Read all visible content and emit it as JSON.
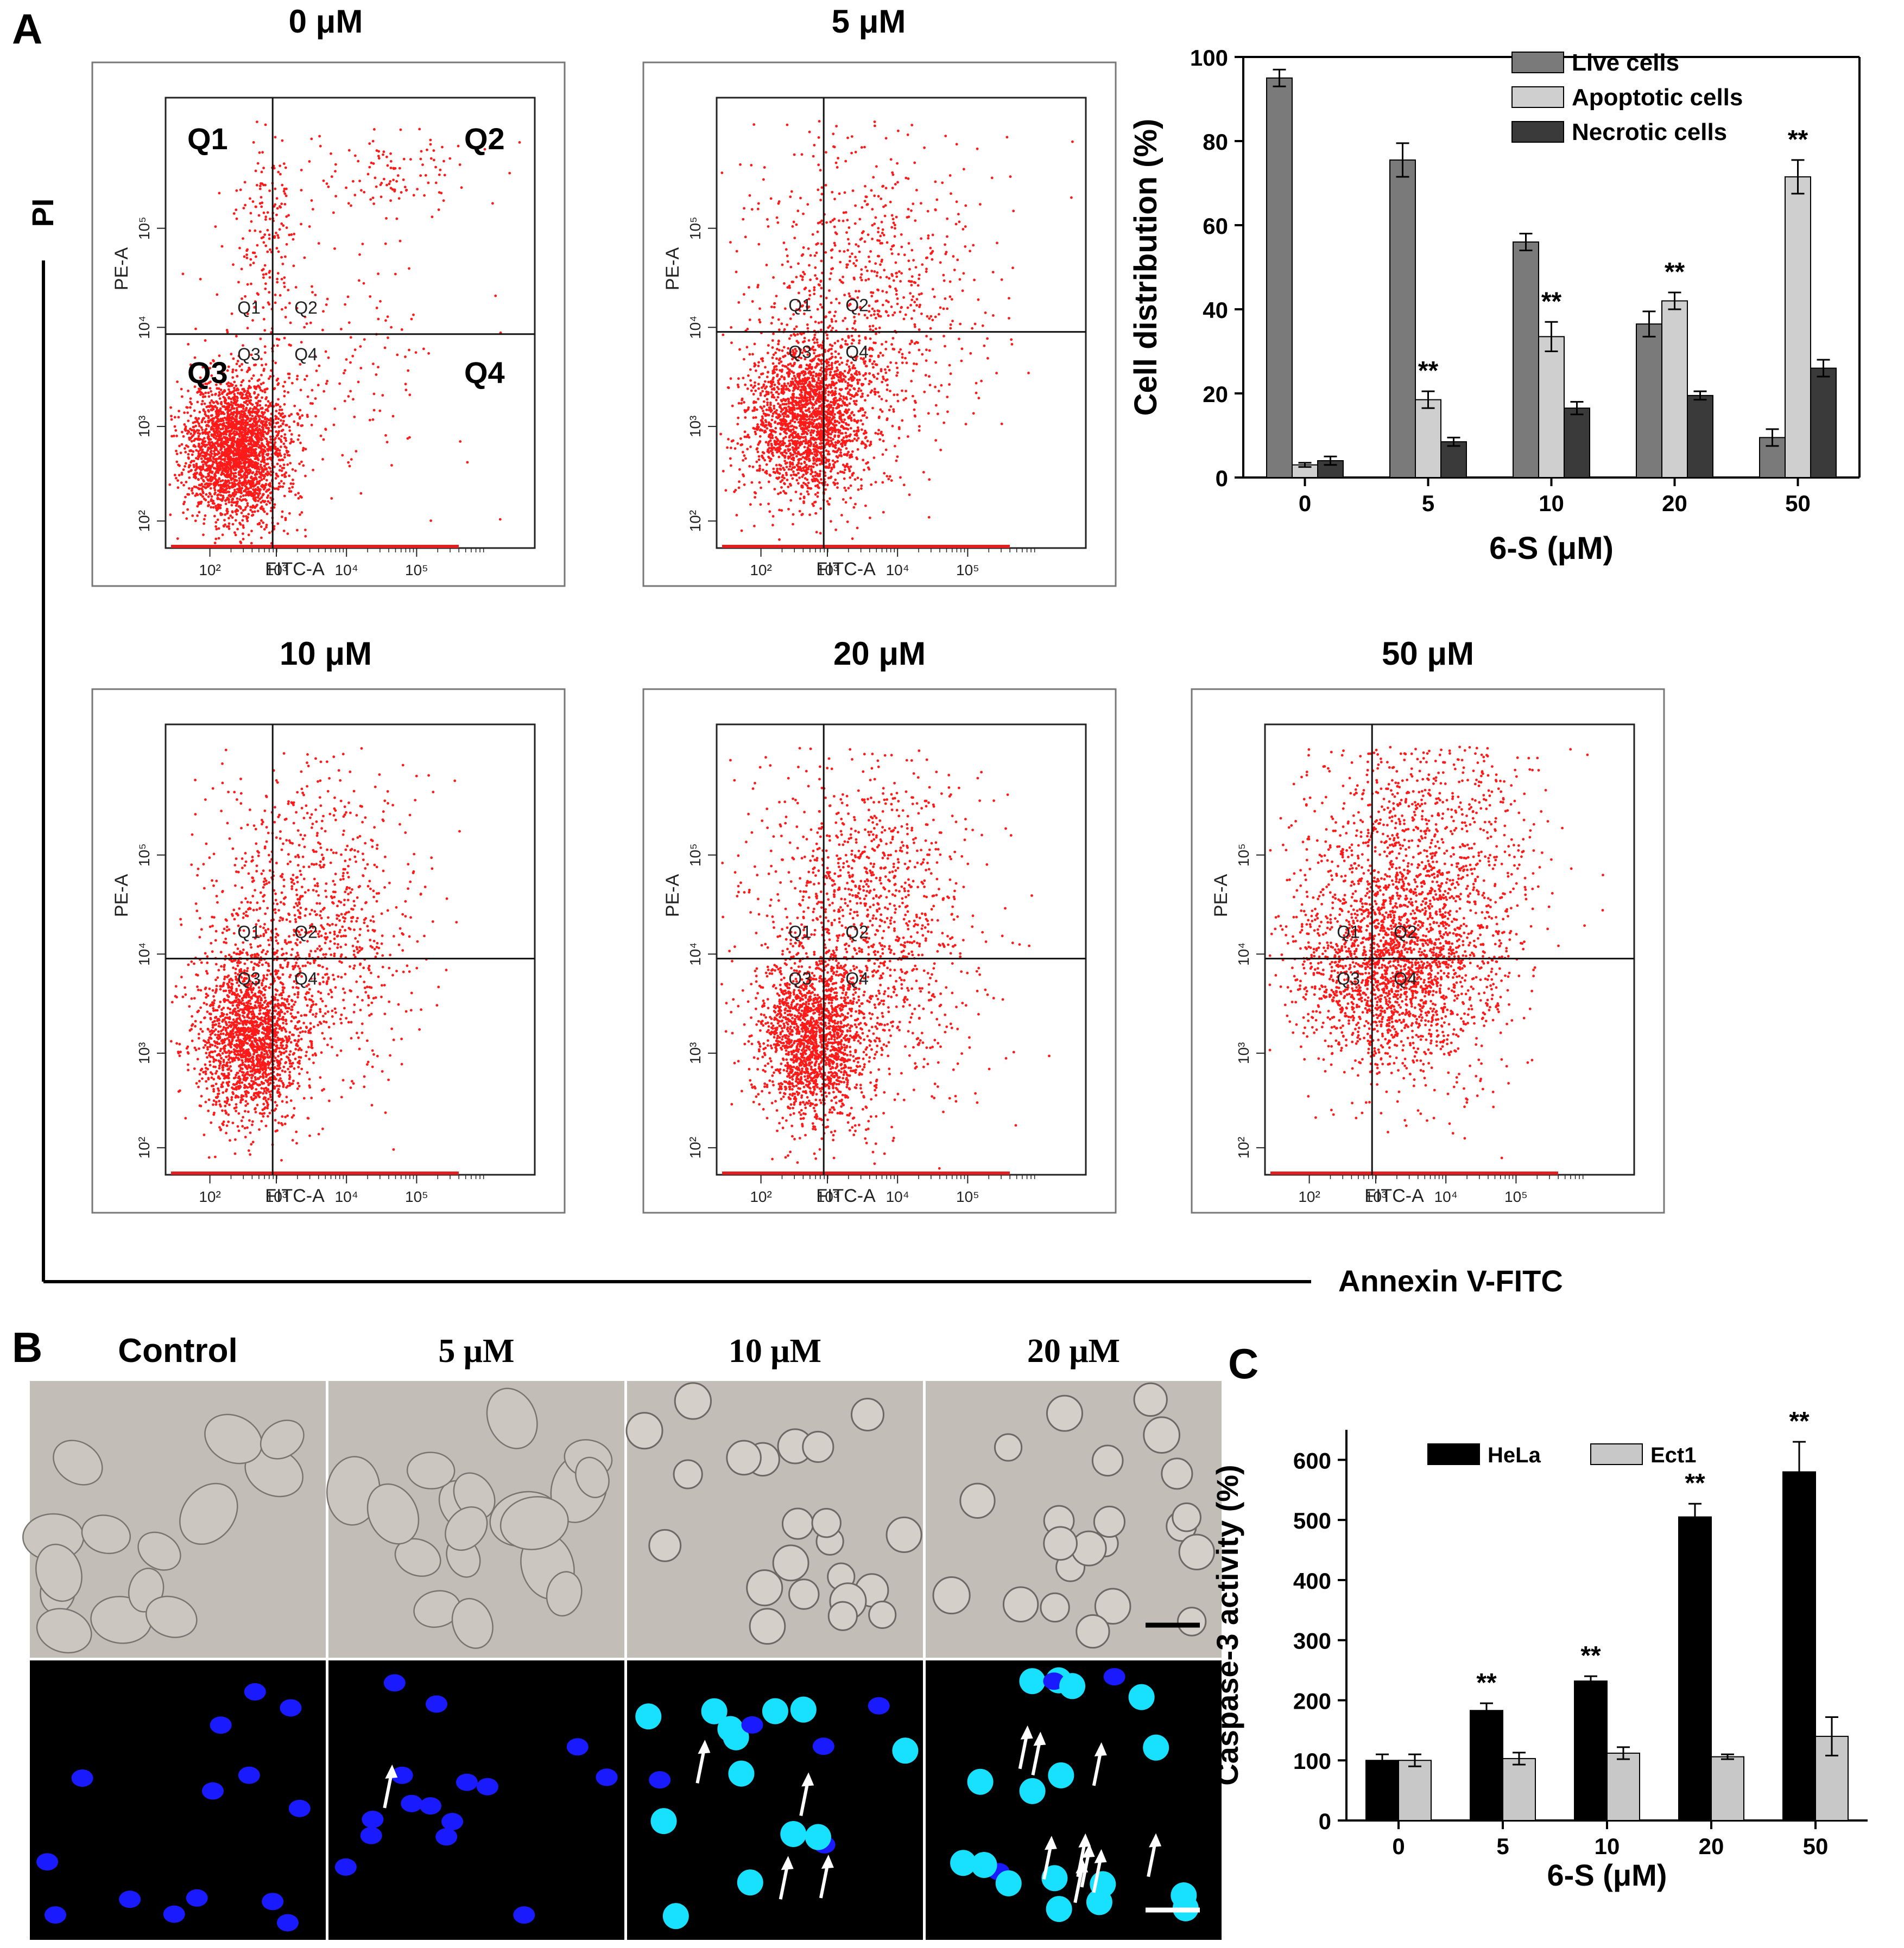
{
  "panel_letters": {
    "a": "A",
    "b": "B",
    "c": "C"
  },
  "panel_a": {
    "y_axis_big_label": "PI",
    "x_axis_big_label": "Annexin V-FITC",
    "flow_panels": [
      {
        "title": "0 μM",
        "scatter_profile": "control"
      },
      {
        "title": "5 μM",
        "scatter_profile": "low"
      },
      {
        "title": "10 μM",
        "scatter_profile": "mid"
      },
      {
        "title": "20 μM",
        "scatter_profile": "high"
      },
      {
        "title": "50 μM",
        "scatter_profile": "top"
      }
    ],
    "flow_axis": {
      "xlabel": "FITC-A",
      "ylabel": "PE-A",
      "ticks": [
        "10²",
        "10³",
        "10⁴",
        "10⁵"
      ],
      "quadrant_small": [
        "Q1",
        "Q2",
        "Q3",
        "Q4"
      ],
      "quadrant_big": [
        "Q1",
        "Q2",
        "Q3",
        "Q4"
      ]
    }
  },
  "chart_data": [
    {
      "type": "bar",
      "title": "",
      "xlabel": "6-S (μM)",
      "ylabel": "Cell distribution (%)",
      "categories": [
        "0",
        "5",
        "10",
        "20",
        "50"
      ],
      "ylim": [
        0,
        100
      ],
      "yticks": [
        0,
        20,
        40,
        60,
        80,
        100
      ],
      "legend_position": "top-right",
      "series": [
        {
          "name": "Live cells",
          "color": "#7a7a7a",
          "values": [
            95,
            75.5,
            56,
            36.5,
            9.5
          ],
          "errors": [
            2,
            4,
            2,
            3,
            2
          ]
        },
        {
          "name": "Apoptotic cells",
          "color": "#cfcfcf",
          "values": [
            3,
            18.5,
            33.5,
            42,
            71.5
          ],
          "errors": [
            0.5,
            2,
            3.5,
            2,
            4
          ]
        },
        {
          "name": "Necrotic cells",
          "color": "#3a3a3a",
          "values": [
            4,
            8.5,
            16.5,
            19.5,
            26
          ],
          "errors": [
            1,
            1,
            1.5,
            1,
            2
          ]
        }
      ],
      "annotations": [
        {
          "category": "5",
          "series": "Apoptotic cells",
          "text": "**"
        },
        {
          "category": "10",
          "series": "Apoptotic cells",
          "text": "**"
        },
        {
          "category": "20",
          "series": "Apoptotic cells",
          "text": "**"
        },
        {
          "category": "50",
          "series": "Apoptotic cells",
          "text": "**"
        }
      ]
    },
    {
      "type": "bar",
      "title": "",
      "xlabel": "6-S (μM)",
      "ylabel": "Caspase-3 activity (%)",
      "categories": [
        "0",
        "5",
        "10",
        "20",
        "50"
      ],
      "ylim": [
        0,
        650
      ],
      "yticks": [
        0,
        100,
        200,
        300,
        400,
        500,
        600
      ],
      "legend_position": "top-left",
      "series": [
        {
          "name": "HeLa",
          "color": "#000000",
          "values": [
            100,
            183,
            232,
            505,
            580
          ],
          "errors": [
            10,
            12,
            8,
            22,
            50
          ]
        },
        {
          "name": "Ect1",
          "color": "#c8c8c8",
          "values": [
            100,
            103,
            112,
            106,
            140
          ],
          "errors": [
            10,
            10,
            10,
            4,
            32
          ]
        }
      ],
      "annotations": [
        {
          "category": "5",
          "series": "HeLa",
          "text": "**"
        },
        {
          "category": "10",
          "series": "HeLa",
          "text": "**"
        },
        {
          "category": "20",
          "series": "HeLa",
          "text": "**"
        },
        {
          "category": "50",
          "series": "HeLa",
          "text": "**"
        }
      ]
    }
  ],
  "panel_b": {
    "columns": [
      "Control",
      "5 μM",
      "10 μM",
      "20 μM"
    ],
    "rows": [
      "brightfield",
      "hoechst"
    ],
    "arrows_per_column": [
      0,
      1,
      4,
      9
    ]
  },
  "colors": {
    "scatter_dot": "#ff1a1a",
    "nucleus_normal": "#1a1aff",
    "nucleus_apoptotic": "#18e0ff",
    "brightfield_bg": "#c2bdb7"
  }
}
